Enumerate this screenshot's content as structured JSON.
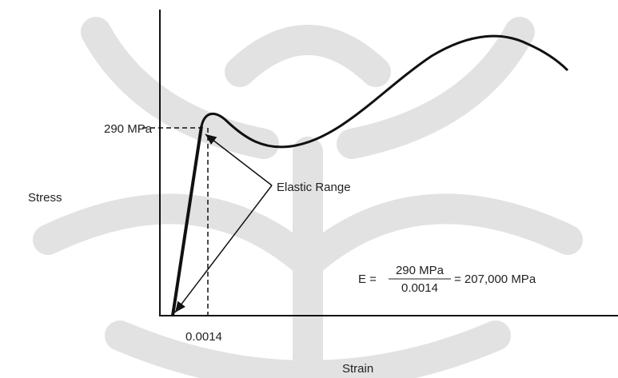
{
  "axes": {
    "y_label": "Stress",
    "x_label": "Strain"
  },
  "markers": {
    "yield_stress": "290 MPa",
    "yield_strain": "0.0014"
  },
  "annotation": "Elastic Range",
  "formula": {
    "lhs": "E =",
    "numerator": "290 MPa",
    "denominator": "0.0014",
    "rhs": "= 207,000 MPa"
  }
}
